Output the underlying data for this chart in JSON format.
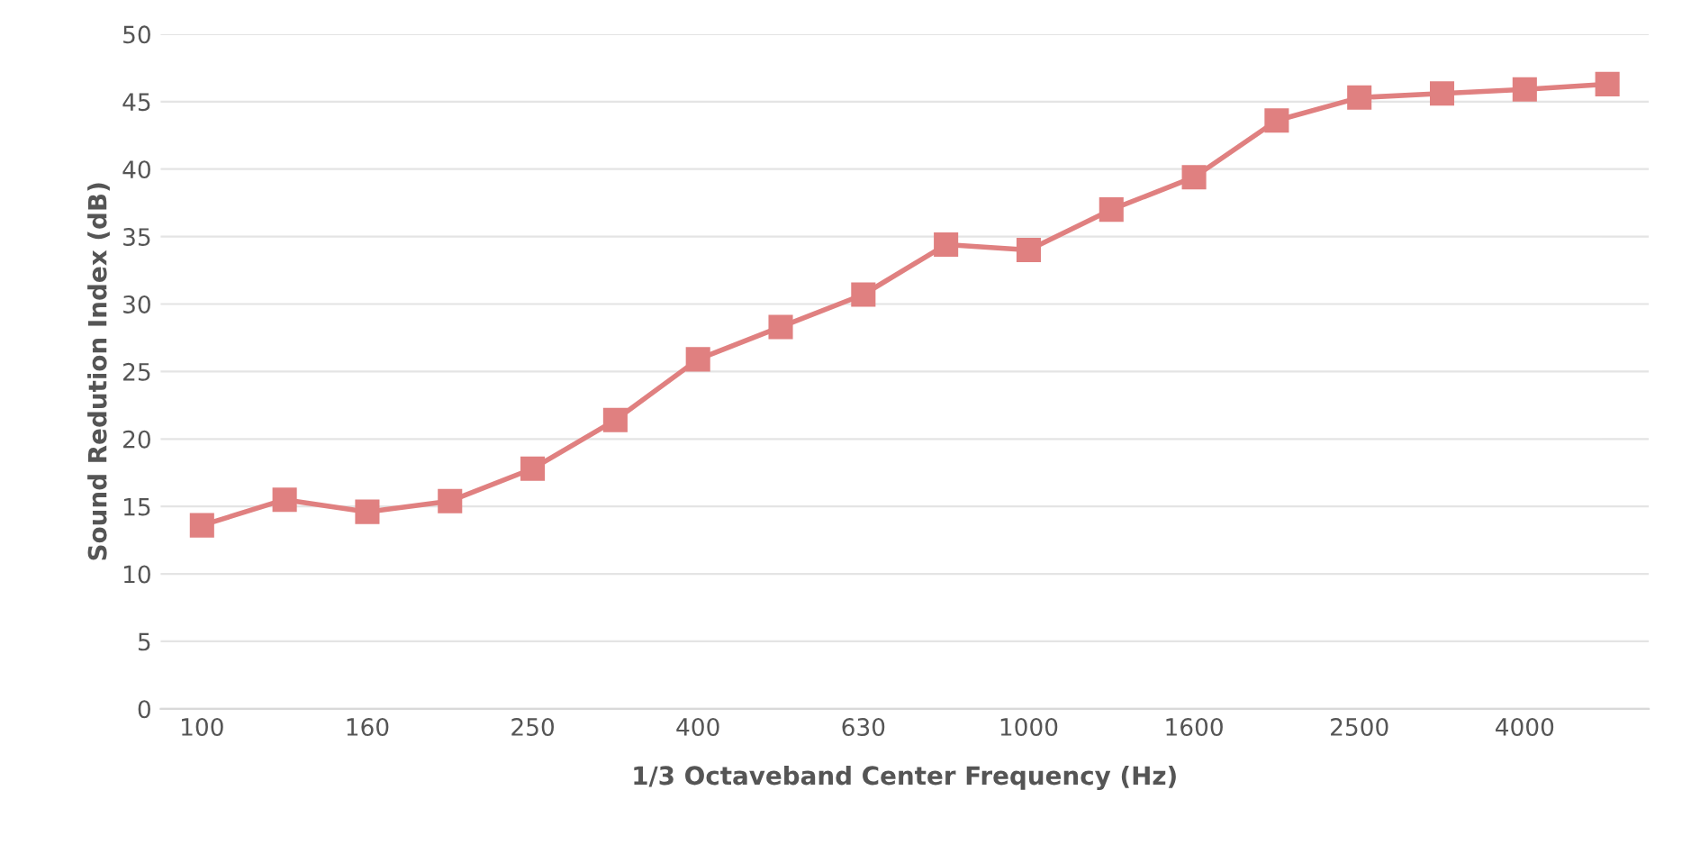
{
  "chart_data": {
    "type": "line",
    "xlabel": "1/3 Octaveband Center Frequency (Hz)",
    "ylabel": "Sound Redution Index (dB)",
    "categories": [
      "100",
      null,
      "160",
      null,
      "250",
      null,
      "400",
      null,
      "630",
      null,
      "1000",
      null,
      "1600",
      null,
      "2500",
      null,
      "4000",
      null
    ],
    "series": [
      {
        "color": "#e08080",
        "values": [
          13.6,
          15.5,
          14.6,
          15.4,
          17.8,
          21.4,
          25.9,
          28.3,
          30.7,
          34.4,
          34.0,
          37.0,
          39.4,
          43.6,
          45.3,
          45.6,
          45.9,
          46.3
        ]
      }
    ],
    "ylim": [
      0,
      50
    ],
    "yticks": [
      0,
      5,
      10,
      15,
      20,
      25,
      30,
      35,
      40,
      45,
      50
    ],
    "grid": "y",
    "marker": "square",
    "line_style": "solid"
  }
}
